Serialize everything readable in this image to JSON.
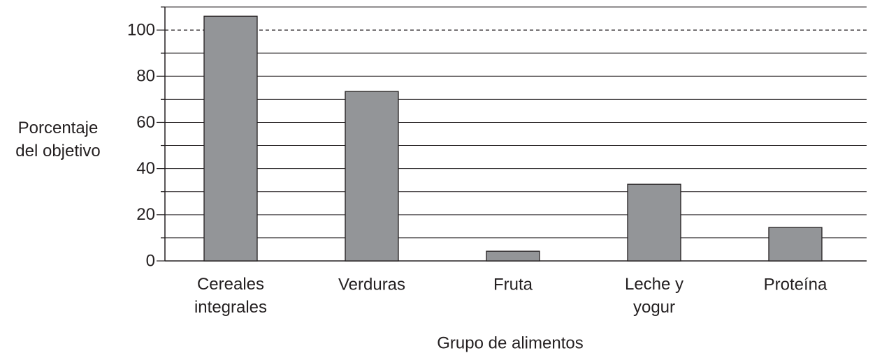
{
  "chart_data": {
    "type": "bar",
    "categories": [
      "Cereales\nintegrales",
      "Verduras",
      "Fruta",
      "Leche y\nyogur",
      "Proteína"
    ],
    "values": [
      106,
      73.4,
      4.2,
      33.2,
      14.5
    ],
    "color": "#939598",
    "ylabel": "Porcentaje\ndel objetivo",
    "xlabel": "Grupo de alimentos",
    "ylim": [
      0,
      110
    ],
    "yticks": [
      0,
      20,
      40,
      60,
      80,
      100
    ],
    "yminor_ticks": [
      10,
      30,
      50,
      70,
      90,
      110
    ],
    "reference_line": 100,
    "grid": true
  }
}
